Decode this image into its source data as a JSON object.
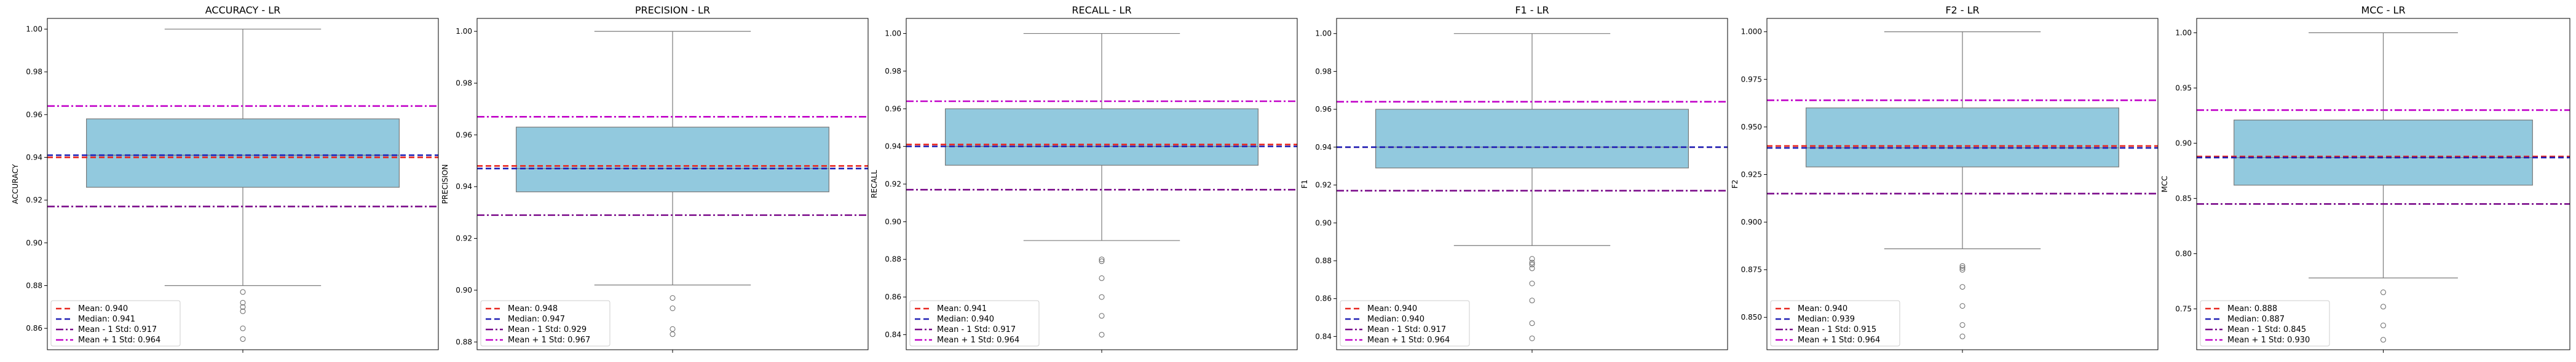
{
  "chart_data": [
    {
      "type": "box",
      "title": "ACCURACY - LR",
      "ylabel": "ACCURACY",
      "ylim": [
        0.85,
        1.005
      ],
      "yticks": [
        0.86,
        0.88,
        0.9,
        0.92,
        0.94,
        0.96,
        0.98,
        1.0
      ],
      "ytick_labels": [
        "0.86",
        "0.88",
        "0.90",
        "0.92",
        "0.94",
        "0.96",
        "0.98",
        "1.00"
      ],
      "box": {
        "whisker_low": 0.88,
        "q1": 0.926,
        "median": 0.941,
        "q3": 0.958,
        "whisker_high": 1.0
      },
      "outliers": [
        0.877,
        0.872,
        0.87,
        0.868,
        0.86,
        0.855
      ],
      "mean": 0.94,
      "median": 0.941,
      "mean_minus_std": 0.917,
      "mean_plus_std": 0.964,
      "legend": [
        "Mean: 0.940",
        "Median: 0.941",
        "Mean - 1 Std: 0.917",
        "Mean + 1 Std: 0.964"
      ]
    },
    {
      "type": "box",
      "title": "PRECISION - LR",
      "ylabel": "PRECISION",
      "ylim": [
        0.877,
        1.005
      ],
      "yticks": [
        0.88,
        0.9,
        0.92,
        0.94,
        0.96,
        0.98,
        1.0
      ],
      "ytick_labels": [
        "0.88",
        "0.90",
        "0.92",
        "0.94",
        "0.96",
        "0.98",
        "1.00"
      ],
      "box": {
        "whisker_low": 0.902,
        "q1": 0.938,
        "median": 0.947,
        "q3": 0.963,
        "whisker_high": 1.0
      },
      "outliers": [
        0.897,
        0.893,
        0.885,
        0.883
      ],
      "mean": 0.948,
      "median": 0.947,
      "mean_minus_std": 0.929,
      "mean_plus_std": 0.967,
      "legend": [
        "Mean: 0.948",
        "Median: 0.947",
        "Mean - 1 Std: 0.929",
        "Mean + 1 Std: 0.967"
      ]
    },
    {
      "type": "box",
      "title": "RECALL - LR",
      "ylabel": "RECALL",
      "ylim": [
        0.832,
        1.008
      ],
      "yticks": [
        0.84,
        0.86,
        0.88,
        0.9,
        0.92,
        0.94,
        0.96,
        0.98,
        1.0
      ],
      "ytick_labels": [
        "0.84",
        "0.86",
        "0.88",
        "0.90",
        "0.92",
        "0.94",
        "0.96",
        "0.98",
        "1.00"
      ],
      "box": {
        "whisker_low": 0.89,
        "q1": 0.93,
        "median": 0.94,
        "q3": 0.96,
        "whisker_high": 1.0
      },
      "outliers": [
        0.88,
        0.879,
        0.87,
        0.86,
        0.85,
        0.84
      ],
      "mean": 0.941,
      "median": 0.94,
      "mean_minus_std": 0.917,
      "mean_plus_std": 0.964,
      "legend": [
        "Mean: 0.941",
        "Median: 0.940",
        "Mean - 1 Std: 0.917",
        "Mean + 1 Std: 0.964"
      ]
    },
    {
      "type": "box",
      "title": "F1 - LR",
      "ylabel": "F1",
      "ylim": [
        0.833,
        1.008
      ],
      "yticks": [
        0.84,
        0.86,
        0.88,
        0.9,
        0.92,
        0.94,
        0.96,
        0.98,
        1.0
      ],
      "ytick_labels": [
        "0.84",
        "0.86",
        "0.88",
        "0.90",
        "0.92",
        "0.94",
        "0.96",
        "0.98",
        "1.00"
      ],
      "box": {
        "whisker_low": 0.888,
        "q1": 0.929,
        "median": 0.94,
        "q3": 0.96,
        "whisker_high": 1.0
      },
      "outliers": [
        0.881,
        0.879,
        0.878,
        0.876,
        0.868,
        0.859,
        0.847,
        0.839
      ],
      "mean": 0.94,
      "median": 0.94,
      "mean_minus_std": 0.917,
      "mean_plus_std": 0.964,
      "legend": [
        "Mean: 0.940",
        "Median: 0.940",
        "Mean - 1 Std: 0.917",
        "Mean + 1 Std: 0.964"
      ]
    },
    {
      "type": "box",
      "title": "F2 - LR",
      "ylabel": "F2",
      "ylim": [
        0.833,
        1.007
      ],
      "yticks": [
        0.85,
        0.875,
        0.9,
        0.925,
        0.95,
        0.975,
        1.0
      ],
      "ytick_labels": [
        "0.850",
        "0.875",
        "0.900",
        "0.925",
        "0.950",
        "0.975",
        "1.000"
      ],
      "box": {
        "whisker_low": 0.886,
        "q1": 0.929,
        "median": 0.939,
        "q3": 0.96,
        "whisker_high": 1.0
      },
      "outliers": [
        0.877,
        0.876,
        0.875,
        0.866,
        0.856,
        0.846,
        0.84
      ],
      "mean": 0.94,
      "median": 0.939,
      "mean_minus_std": 0.915,
      "mean_plus_std": 0.964,
      "legend": [
        "Mean: 0.940",
        "Median: 0.939",
        "Mean - 1 Std: 0.915",
        "Mean + 1 Std: 0.964"
      ]
    },
    {
      "type": "box",
      "title": "MCC - LR",
      "ylabel": "MCC",
      "ylim": [
        0.713,
        1.013
      ],
      "yticks": [
        0.75,
        0.8,
        0.85,
        0.9,
        0.95,
        1.0
      ],
      "ytick_labels": [
        "0.75",
        "0.80",
        "0.85",
        "0.90",
        "0.95",
        "1.00"
      ],
      "box": {
        "whisker_low": 0.778,
        "q1": 0.862,
        "median": 0.887,
        "q3": 0.921,
        "whisker_high": 1.0
      },
      "outliers": [
        0.765,
        0.752,
        0.735,
        0.722
      ],
      "mean": 0.888,
      "median": 0.887,
      "mean_minus_std": 0.845,
      "mean_plus_std": 0.93,
      "legend": [
        "Mean: 0.888",
        "Median: 0.887",
        "Mean - 1 Std: 0.845",
        "Mean + 1 Std: 0.930"
      ]
    }
  ],
  "colors": {
    "box_fill": "#92c9de",
    "box_edge": "#7a7a7a",
    "mean_line": "#e8251e",
    "median_line": "#1f1fb4",
    "std_minus_line": "#7a0a8a",
    "std_plus_line": "#c100c8",
    "outlier_edge": "#666666",
    "axis": "#000000"
  }
}
